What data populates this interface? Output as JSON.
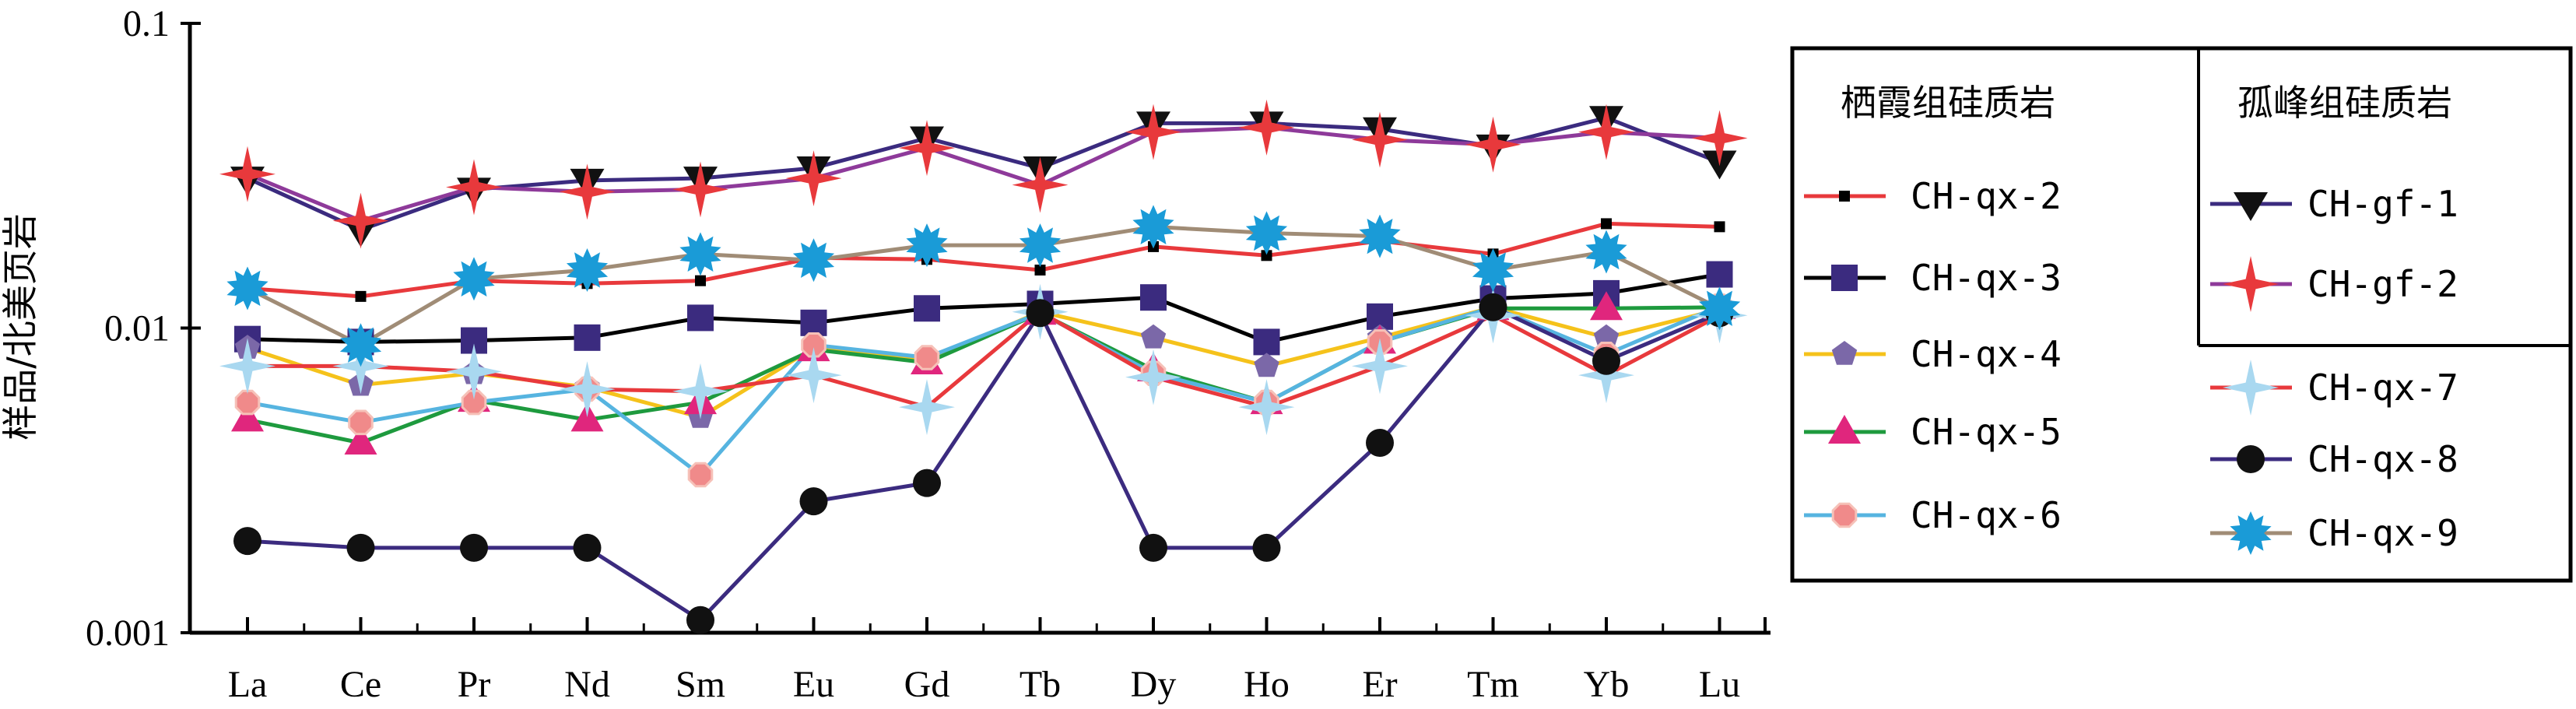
{
  "chart_data": {
    "type": "line",
    "ylabel": "样品/北美页岩",
    "xlabel": "",
    "yscale": "log",
    "ylim": [
      0.001,
      0.1
    ],
    "y_ticks": [
      "0.1",
      "0.01",
      "0.001"
    ],
    "categories": [
      "La",
      "Ce",
      "Pr",
      "Nd",
      "Sm",
      "Eu",
      "Gd",
      "Tb",
      "Dy",
      "Ho",
      "Er",
      "Tm",
      "Yb",
      "Lu"
    ],
    "legend": {
      "position": "right",
      "group1_title": "栖霞组硅质岩",
      "group2_title": "孤峰组硅质岩"
    },
    "series": [
      {
        "name": "CH-qx-2",
        "line_color": "#e8393c",
        "marker": "small-square",
        "marker_color": "#000000",
        "values": [
          0.0135,
          0.0127,
          0.0143,
          0.014,
          0.0143,
          0.017,
          0.0168,
          0.0155,
          0.0185,
          0.0173,
          0.0193,
          0.0175,
          0.022,
          0.0215
        ]
      },
      {
        "name": "CH-qx-3",
        "line_color": "#000000",
        "marker": "square",
        "marker_color": "#3b2b7f",
        "values": [
          0.0092,
          0.009,
          0.0091,
          0.0093,
          0.0108,
          0.0104,
          0.0116,
          0.012,
          0.0126,
          0.009,
          0.0109,
          0.0125,
          0.013,
          0.015
        ]
      },
      {
        "name": "CH-qx-4",
        "line_color": "#f5c21b",
        "marker": "pentagon",
        "marker_color": "#7b68a8",
        "values": [
          0.0086,
          0.0065,
          0.0071,
          0.0064,
          0.0051,
          0.0086,
          0.0078,
          0.0113,
          0.0093,
          0.0075,
          0.0093,
          0.0117,
          0.0093,
          0.0115
        ]
      },
      {
        "name": "CH-qx-5",
        "line_color": "#1e9a3e",
        "marker": "triangle",
        "marker_color": "#e0267d",
        "values": [
          0.005,
          0.0042,
          0.0058,
          0.005,
          0.0057,
          0.0085,
          0.0077,
          0.0112,
          0.0073,
          0.0057,
          0.009,
          0.0116,
          0.0116,
          0.0117
        ]
      },
      {
        "name": "CH-qx-6",
        "line_color": "#56b4e0",
        "marker": "octagon",
        "marker_color": "#f08a8a",
        "values": [
          0.0057,
          0.0049,
          0.0057,
          0.0063,
          0.0033,
          0.0088,
          0.008,
          0.0112,
          0.0071,
          0.0057,
          0.009,
          0.0117,
          0.0082,
          0.0118
        ]
      },
      {
        "name": "CH-qx-7",
        "line_color": "#e8393c",
        "marker": "star4",
        "marker_color": "#a9d8f0",
        "values": [
          0.0075,
          0.0075,
          0.0072,
          0.0063,
          0.0062,
          0.007,
          0.0055,
          0.0113,
          0.0069,
          0.0055,
          0.0075,
          0.011,
          0.007,
          0.011
        ]
      },
      {
        "name": "CH-qx-8",
        "line_color": "#3b2b7f",
        "marker": "circle",
        "marker_color": "#111111",
        "values": [
          0.002,
          0.0019,
          0.0019,
          0.0019,
          0.0011,
          0.0027,
          0.0031,
          0.0112,
          0.0019,
          0.0019,
          0.0042,
          0.0117,
          0.0078,
          0.0112
        ]
      },
      {
        "name": "CH-qx-9",
        "line_color": "#a08c76",
        "marker": "burst",
        "marker_color": "#1a9bd7",
        "values": [
          0.0135,
          0.0088,
          0.0145,
          0.0155,
          0.0175,
          0.0167,
          0.0187,
          0.0187,
          0.0215,
          0.0205,
          0.02,
          0.0155,
          0.0178,
          0.0116
        ]
      },
      {
        "name": "CH-gf-1",
        "line_color": "#3b2b7f",
        "marker": "triangle-down",
        "marker_color": "#111111",
        "values": [
          0.031,
          0.021,
          0.0285,
          0.0305,
          0.031,
          0.0335,
          0.042,
          0.0335,
          0.047,
          0.047,
          0.045,
          0.0395,
          0.049,
          0.035
        ]
      },
      {
        "name": "CH-gf-2",
        "line_color": "#8e3a9a",
        "marker": "star4",
        "marker_color": "#e8393c",
        "values": [
          0.032,
          0.0225,
          0.029,
          0.028,
          0.0285,
          0.031,
          0.039,
          0.0295,
          0.044,
          0.0455,
          0.0415,
          0.04,
          0.044,
          0.042
        ]
      }
    ]
  }
}
